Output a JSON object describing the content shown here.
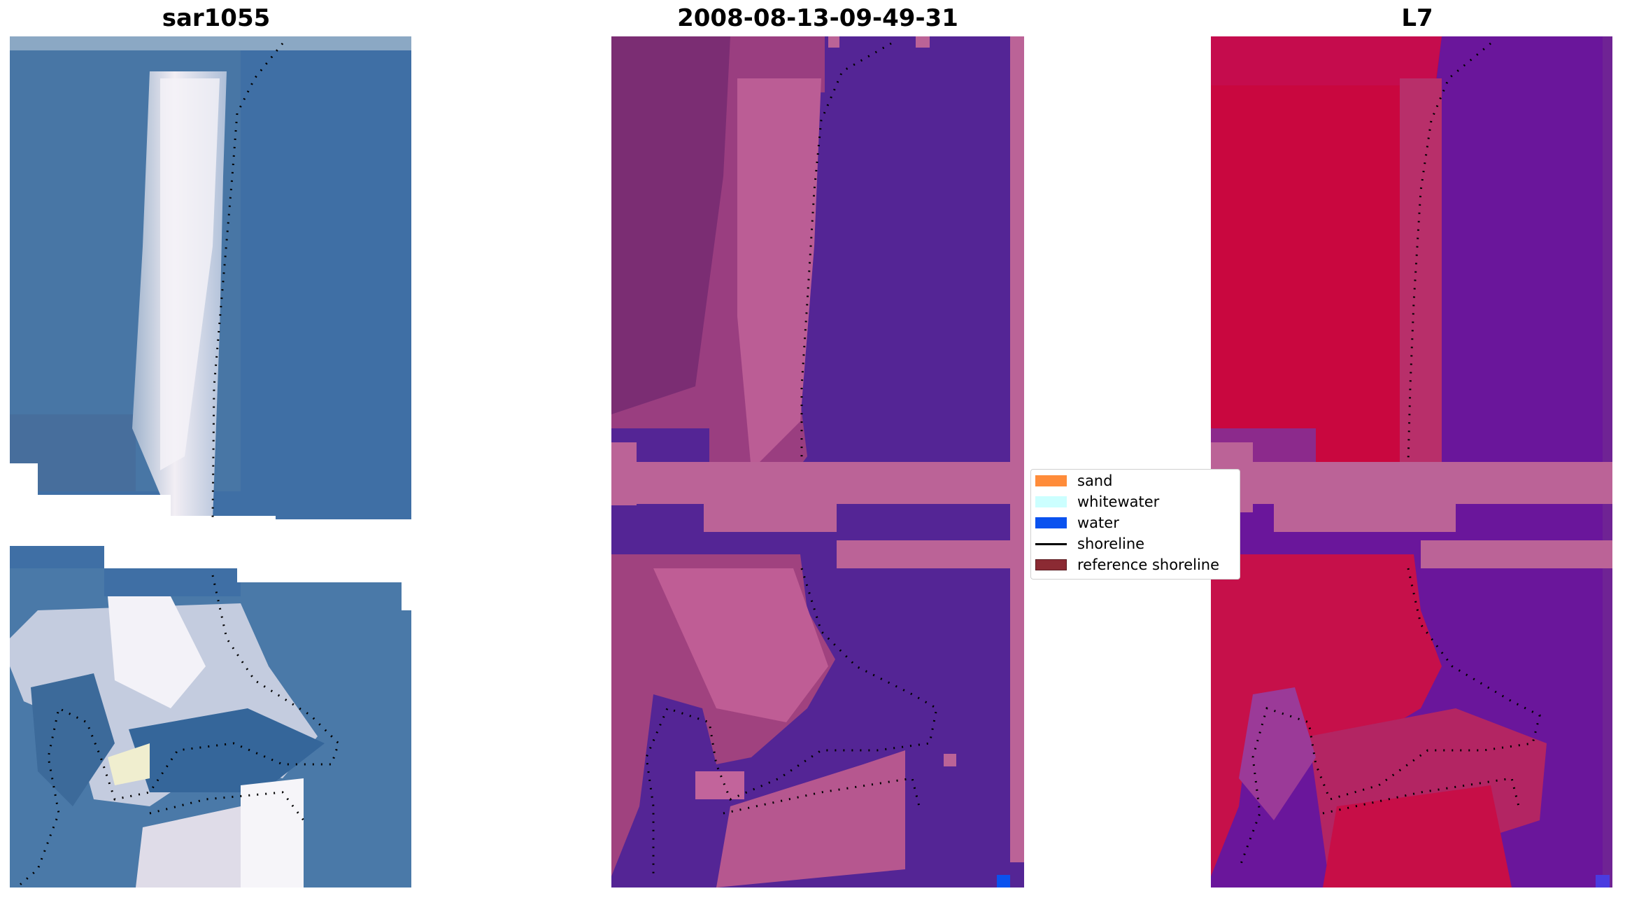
{
  "titles": {
    "left": "sar1055",
    "center": "2008-08-13-09-49-31",
    "right": "L7"
  },
  "legend": {
    "items": [
      {
        "label": "sand",
        "color": "#ff8c3a",
        "kind": "patch"
      },
      {
        "label": "whitewater",
        "color": "#ccffff",
        "kind": "patch"
      },
      {
        "label": "water",
        "color": "#0a52ef",
        "kind": "patch"
      },
      {
        "label": "shoreline",
        "color": "#000000",
        "kind": "line"
      },
      {
        "label": "reference shoreline",
        "color": "#8b2a33",
        "kind": "patch"
      }
    ]
  },
  "colors": {
    "rgb_water": "#3e6fa6",
    "rgb_sand": "#dcd8e8",
    "class_water_bg": "#542595",
    "class_land": "#c06196",
    "ndwi_land": "#c9073f",
    "ndwi_water": "#6a169b",
    "nodata_fill": "#bb6397"
  }
}
